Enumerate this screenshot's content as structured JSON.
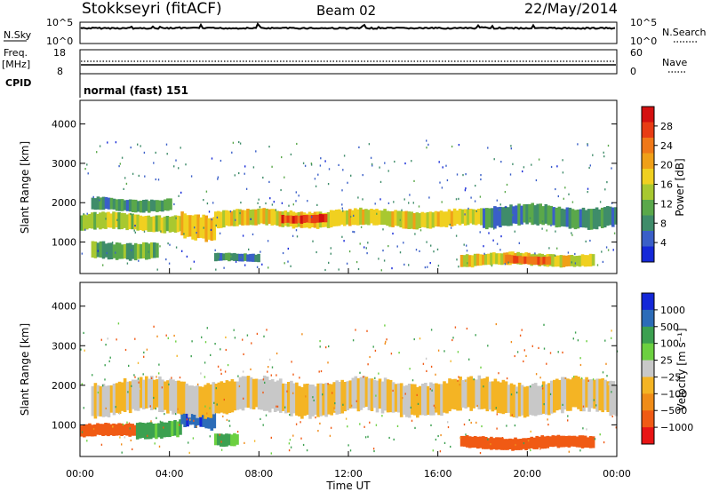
{
  "header": {
    "station": "Stokkseyri (fitACF)",
    "beam": "Beam 02",
    "date": "22/May/2014"
  },
  "labels": {
    "nsky": "N.Sky",
    "freq": "Freq.",
    "mhz": "[MHz]",
    "cpid": "CPID",
    "nsearch": "N.Search",
    "nave": "Nave",
    "cpid_value": "normal (fast) 151"
  },
  "colors": {
    "power": [
      "#1428d8",
      "#3a5fc8",
      "#3f8c6a",
      "#5aa84a",
      "#a8c830",
      "#f0d020",
      "#f0a018",
      "#f07818",
      "#e83c14",
      "#d41010"
    ],
    "velocity": [
      "#e81414",
      "#f05a14",
      "#f08c18",
      "#f4b424",
      "#c8c8c8",
      "#6cd040",
      "#3ca050",
      "#2c6cb8",
      "#1428d8"
    ]
  },
  "chart_data": [
    {
      "type": "line",
      "name_label": "N.Sky / N.Search",
      "left_ticks": [
        "10^5",
        "10^0"
      ],
      "right_ticks": [
        "10^5",
        "10^0"
      ]
    },
    {
      "type": "line",
      "left_ticks": [
        "18",
        "8"
      ],
      "right_ticks": [
        "60",
        "0"
      ]
    },
    {
      "type": "heatmap",
      "ylabel": "Slant Range [km]",
      "ylim": [
        200,
        4600
      ],
      "yticks": [
        "1000",
        "2000",
        "3000",
        "4000"
      ],
      "xticks": [
        "00:00",
        "04:00",
        "08:00",
        "12:00",
        "16:00",
        "20:00",
        "00:00"
      ],
      "colorbar": {
        "label": "Power [dB]",
        "ticks": [
          "28",
          "24",
          "20",
          "16",
          "12",
          "8",
          "4"
        ],
        "range": [
          0,
          30
        ]
      },
      "bands": [
        {
          "t0": 0.0,
          "t1": 4.5,
          "r0": 1300,
          "r1": 1700,
          "value": 14
        },
        {
          "t0": 0.5,
          "t1": 4.0,
          "r0": 1800,
          "r1": 2100,
          "value": 8
        },
        {
          "t0": 0.5,
          "t1": 3.5,
          "r0": 600,
          "r1": 1000,
          "value": 10
        },
        {
          "t0": 4.5,
          "t1": 6.0,
          "r0": 1100,
          "r1": 1700,
          "value": 18
        },
        {
          "t0": 6.0,
          "t1": 18.0,
          "r0": 1400,
          "r1": 1800,
          "value": 16
        },
        {
          "t0": 9.0,
          "t1": 11.0,
          "r0": 1500,
          "r1": 1700,
          "value": 26
        },
        {
          "t0": 6.0,
          "t1": 8.0,
          "r0": 500,
          "r1": 700,
          "value": 8
        },
        {
          "t0": 18.0,
          "t1": 24.0,
          "r0": 1400,
          "r1": 1900,
          "value": 8
        },
        {
          "t0": 17.0,
          "t1": 23.0,
          "r0": 400,
          "r1": 700,
          "value": 16
        },
        {
          "t0": 19.0,
          "t1": 21.0,
          "r0": 450,
          "r1": 650,
          "value": 24
        }
      ]
    },
    {
      "type": "heatmap",
      "ylabel": "Slant Range [km]",
      "xlabel": "Time UT",
      "ylim": [
        200,
        4600
      ],
      "yticks": [
        "1000",
        "2000",
        "3000",
        "4000"
      ],
      "xticks": [
        "00:00",
        "04:00",
        "08:00",
        "12:00",
        "16:00",
        "20:00",
        "00:00"
      ],
      "colorbar": {
        "label": "Velocity [m s⁻¹]",
        "ticks": [
          "1000",
          "500",
          "100",
          "25",
          "−25",
          "−100",
          "−500",
          "−1000"
        ]
      },
      "bands": [
        {
          "t0": 0.0,
          "t1": 2.5,
          "r0": 700,
          "r1": 1000,
          "value": -300
        },
        {
          "t0": 2.5,
          "t1": 4.5,
          "r0": 700,
          "r1": 1100,
          "value": 150
        },
        {
          "t0": 4.5,
          "t1": 6.0,
          "r0": 900,
          "r1": 1600,
          "value": 800
        },
        {
          "t0": 6.0,
          "t1": 7.0,
          "r0": 500,
          "r1": 800,
          "value": 120
        },
        {
          "t0": 0.5,
          "t1": 24.0,
          "r0": 1300,
          "r1": 2100,
          "value": 0
        },
        {
          "t0": 17.0,
          "t1": 23.0,
          "r0": 400,
          "r1": 700,
          "value": -300
        }
      ]
    }
  ]
}
